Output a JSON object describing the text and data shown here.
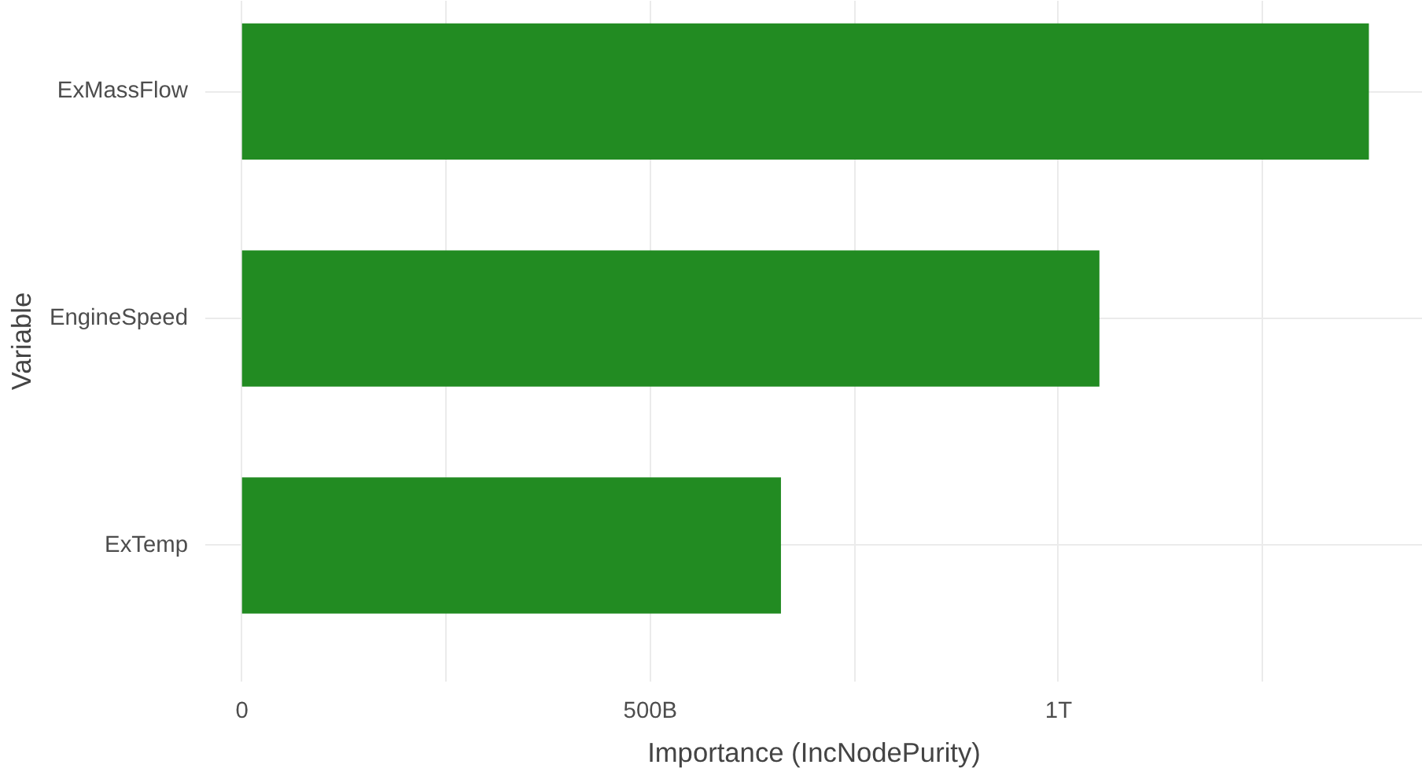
{
  "chart_data": {
    "type": "bar",
    "orientation": "horizontal",
    "categories": [
      "ExMassFlow",
      "EngineSpeed",
      "ExTemp"
    ],
    "values": [
      1380000000000.0,
      1050000000000.0,
      660000000000.0
    ],
    "color": "#228b22",
    "xlabel": "Importance (IncNodePurity)",
    "ylabel": "Variable",
    "xlim": [
      -45000000000.0,
      1446000000000.0
    ],
    "xticks": [
      0,
      {
        "value": 250000000000.0,
        "label": null
      },
      {
        "value": 500000000000.0,
        "label": "500B"
      },
      {
        "value": 750000000000.0,
        "label": null
      },
      {
        "value": 1000000000000.0,
        "label": "1T"
      },
      {
        "value": 1250000000000.0,
        "label": null
      }
    ],
    "grid": true
  }
}
